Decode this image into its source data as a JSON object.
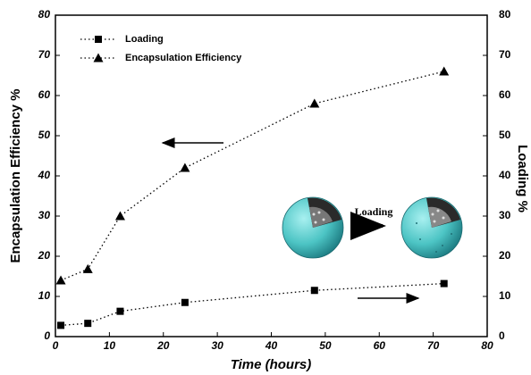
{
  "chart_data": {
    "type": "line",
    "x_label": "Time (hours)",
    "y_label": "Encapsulation Efficiency %",
    "y2_label": "Loading %",
    "annotation": "Loading",
    "x": [
      1,
      6,
      12,
      24,
      48,
      72
    ],
    "series": [
      {
        "name": "Loading",
        "color": "#000000",
        "marker": "square",
        "axis": "y2",
        "values": [
          2.8,
          3.3,
          6.3,
          8.5,
          11.5,
          13.2
        ]
      },
      {
        "name": "Encapsulation Efficiency",
        "color": "#000000",
        "marker": "triangle",
        "axis": "y",
        "values": [
          14,
          16.8,
          30,
          42,
          58,
          66
        ]
      }
    ],
    "xlim": [
      0,
      80
    ],
    "xticks": [
      0,
      10,
      20,
      30,
      40,
      50,
      60,
      70,
      80
    ],
    "ylim": [
      0,
      80
    ],
    "yticks": [
      0,
      10,
      20,
      30,
      40,
      50,
      60,
      70,
      80
    ],
    "y2lim": [
      0,
      80
    ],
    "y2ticks": [
      0,
      10,
      20,
      30,
      40,
      50,
      60,
      70,
      80
    ],
    "line_style": "dotted",
    "legend": "upper left"
  }
}
